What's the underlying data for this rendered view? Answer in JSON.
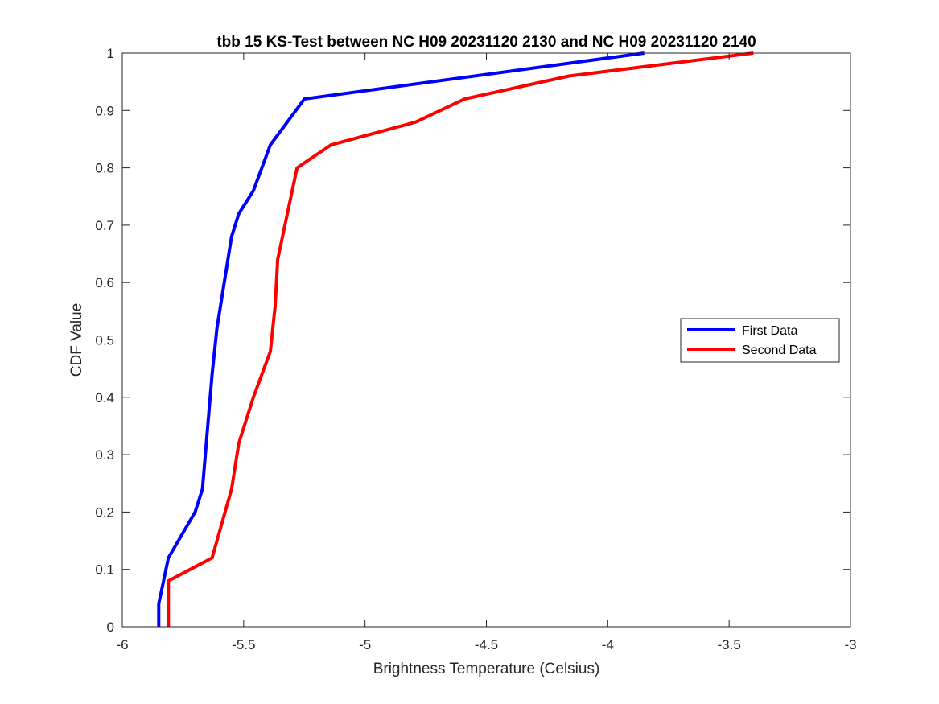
{
  "chart_data": {
    "type": "line",
    "title": "tbb 15 KS-Test between NC H09 20231120 2130 and NC H09 20231120 2140",
    "xlabel": "Brightness Temperature (Celsius)",
    "ylabel": "CDF Value",
    "xlim": [
      -6,
      -3
    ],
    "ylim": [
      0,
      1
    ],
    "x_ticks": [
      -6,
      -5.5,
      -5,
      -4.5,
      -4,
      -3.5,
      -3
    ],
    "x_tick_labels": [
      "-6",
      "-5.5",
      "-5",
      "-4.5",
      "-4",
      "-3.5",
      "-3"
    ],
    "y_ticks": [
      0,
      0.1,
      0.2,
      0.3,
      0.4,
      0.5,
      0.6,
      0.7,
      0.8,
      0.9,
      1
    ],
    "y_tick_labels": [
      "0",
      "0.1",
      "0.2",
      "0.3",
      "0.4",
      "0.5",
      "0.6",
      "0.7",
      "0.8",
      "0.9",
      "1"
    ],
    "grid": false,
    "legend_position": "right",
    "series": [
      {
        "name": "First Data",
        "color": "#0000ff",
        "x": [
          -5.85,
          -5.85,
          -5.81,
          -5.7,
          -5.67,
          -5.63,
          -5.62,
          -5.61,
          -5.55,
          -5.52,
          -5.46,
          -5.39,
          -5.25,
          -3.85
        ],
        "y": [
          0,
          0.04,
          0.12,
          0.2,
          0.24,
          0.44,
          0.48,
          0.52,
          0.68,
          0.72,
          0.76,
          0.84,
          0.92,
          1.0
        ]
      },
      {
        "name": "Second Data",
        "color": "#ff0000",
        "x": [
          -5.81,
          -5.81,
          -5.63,
          -5.55,
          -5.52,
          -5.46,
          -5.39,
          -5.37,
          -5.36,
          -5.32,
          -5.28,
          -5.14,
          -4.79,
          -4.59,
          -4.16,
          -3.4
        ],
        "y": [
          0,
          0.08,
          0.12,
          0.24,
          0.32,
          0.4,
          0.48,
          0.56,
          0.64,
          0.72,
          0.8,
          0.84,
          0.88,
          0.92,
          0.96,
          1.0
        ]
      }
    ]
  }
}
